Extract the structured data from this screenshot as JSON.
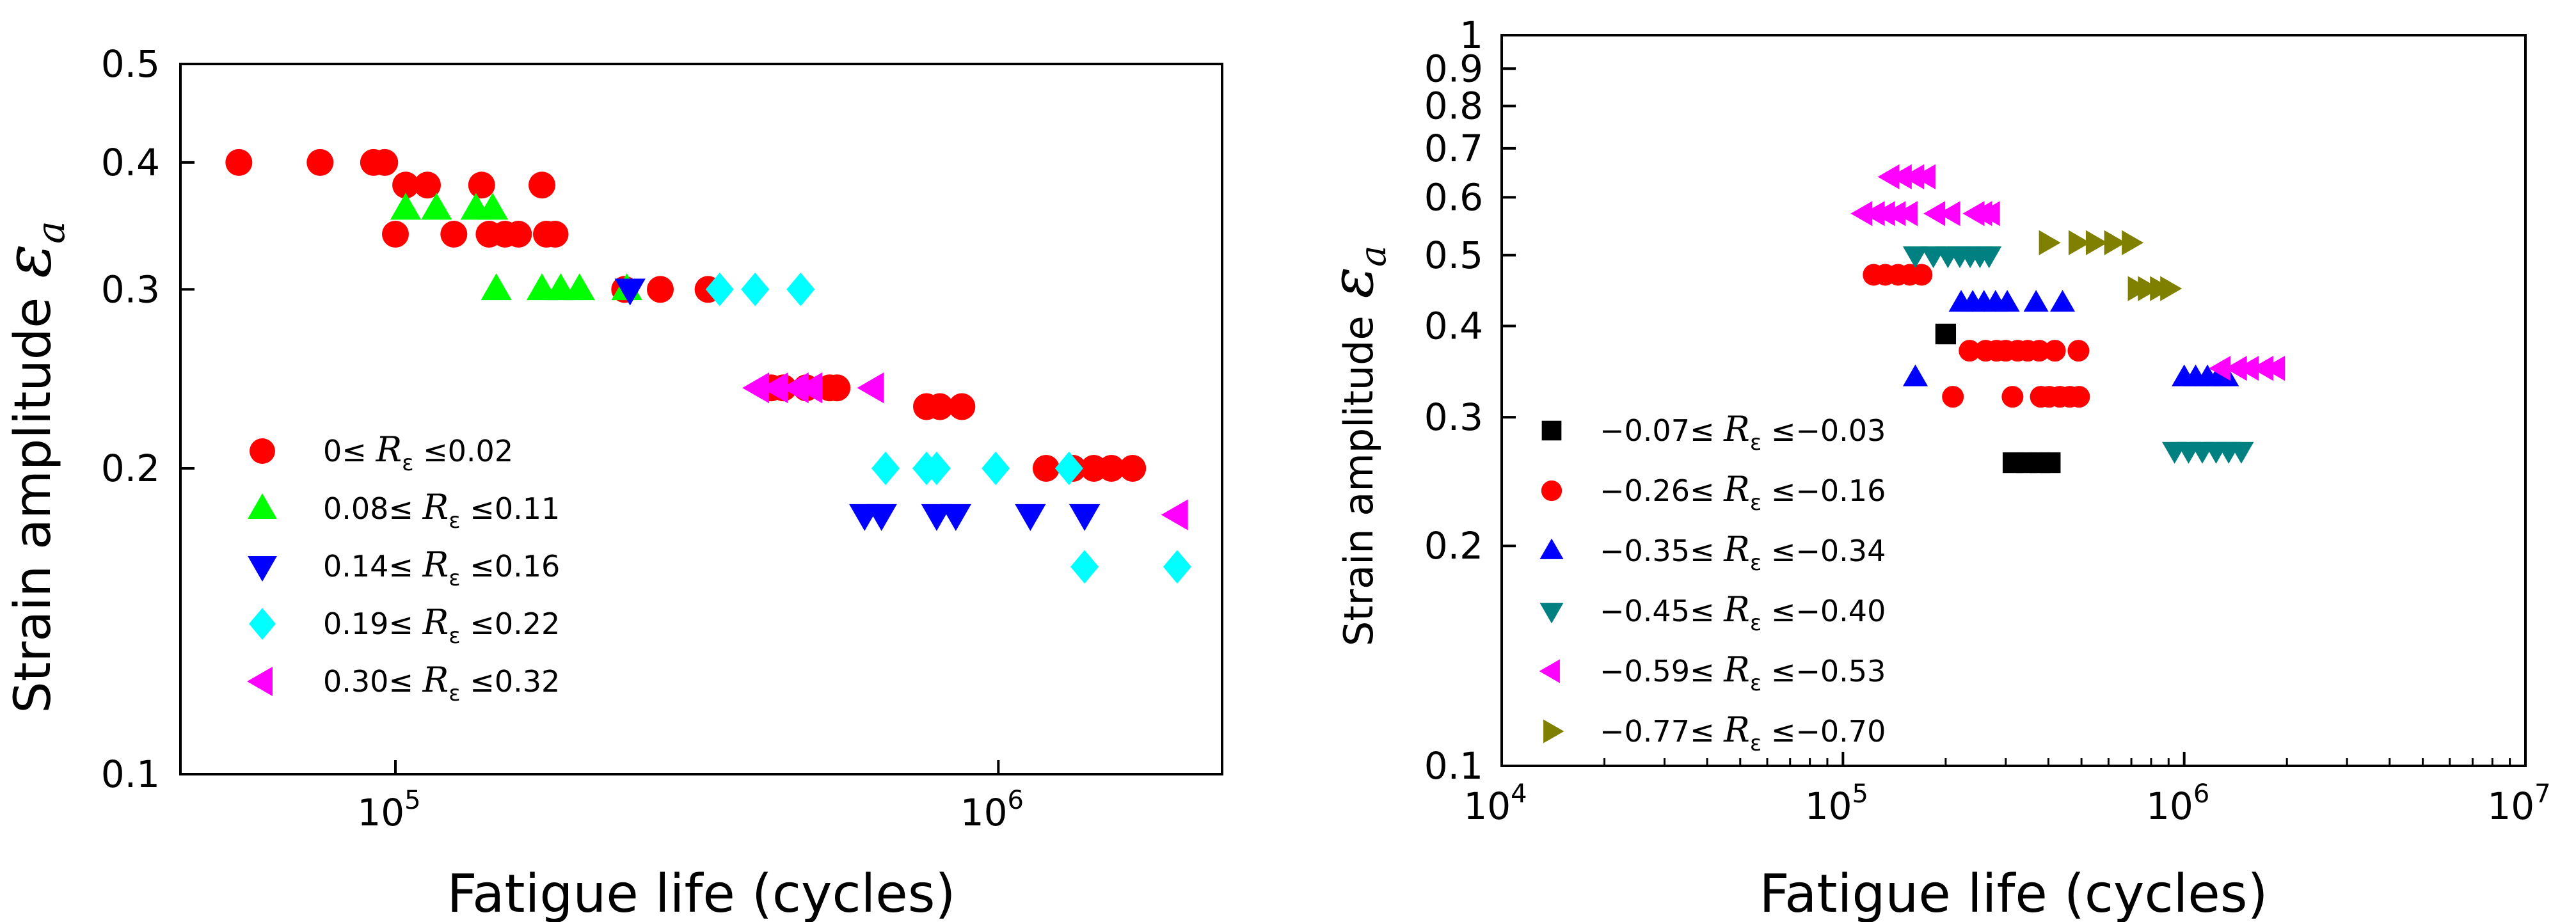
{
  "chart_data": [
    {
      "type": "scatter",
      "xscale": "log",
      "yscale": "log",
      "xlim": [
        44000,
        2350000
      ],
      "ylim": [
        0.1,
        0.5
      ],
      "xlabel": "Fatigue life (cycles)",
      "ylabel": "Strain amplitude",
      "ylabel_symbol": "ε",
      "ylabel_subscript": "a",
      "xticks": [
        {
          "v": 100000,
          "base": "10",
          "exp": "5"
        },
        {
          "v": 1000000,
          "base": "10",
          "exp": "6"
        }
      ],
      "yticks": [
        {
          "v": 0.1,
          "label": "0.1"
        },
        {
          "v": 0.2,
          "label": "0.2"
        },
        {
          "v": 0.3,
          "label": "0.3"
        },
        {
          "v": 0.4,
          "label": "0.4"
        },
        {
          "v": 0.5,
          "label": "0.5"
        }
      ],
      "legend_position": "lower-left",
      "series": [
        {
          "name": "0≤ Rε ≤0.02",
          "legend_pre": "0≤ ",
          "legend_post": " ≤0.02",
          "marker": "circle",
          "color": "#ff0000",
          "points": [
            [
              55000,
              0.4
            ],
            [
              75000,
              0.4
            ],
            [
              92000,
              0.4
            ],
            [
              96000,
              0.4
            ],
            [
              100000,
              0.34
            ],
            [
              104000,
              0.38
            ],
            [
              113000,
              0.38
            ],
            [
              125000,
              0.34
            ],
            [
              139000,
              0.38
            ],
            [
              143000,
              0.34
            ],
            [
              152000,
              0.34
            ],
            [
              160000,
              0.34
            ],
            [
              175000,
              0.38
            ],
            [
              178000,
              0.34
            ],
            [
              184000,
              0.34
            ],
            [
              240000,
              0.3
            ],
            [
              275000,
              0.3
            ],
            [
              330000,
              0.3
            ],
            [
              420000,
              0.24
            ],
            [
              440000,
              0.24
            ],
            [
              480000,
              0.24
            ],
            [
              525000,
              0.24
            ],
            [
              540000,
              0.24
            ],
            [
              760000,
              0.23
            ],
            [
              800000,
              0.23
            ],
            [
              870000,
              0.23
            ],
            [
              1200000,
              0.2
            ],
            [
              1330000,
              0.2
            ],
            [
              1440000,
              0.2
            ],
            [
              1540000,
              0.2
            ],
            [
              1670000,
              0.2
            ]
          ]
        },
        {
          "name": "0.08≤ Rε ≤0.11",
          "legend_pre": "0.08≤ ",
          "legend_post": " ≤0.11",
          "marker": "triangle-up",
          "color": "#00ff00",
          "points": [
            [
              104000,
              0.36
            ],
            [
              117000,
              0.36
            ],
            [
              136000,
              0.36
            ],
            [
              145000,
              0.36
            ],
            [
              147000,
              0.3
            ],
            [
              175000,
              0.3
            ],
            [
              188000,
              0.3
            ],
            [
              202000,
              0.3
            ],
            [
              242000,
              0.3
            ]
          ]
        },
        {
          "name": "0.14≤ Rε ≤0.16",
          "legend_pre": "0.14≤ ",
          "legend_post": " ≤0.16",
          "marker": "triangle-down",
          "color": "#0000ff",
          "points": [
            [
              245000,
              0.3
            ],
            [
              600000,
              0.18
            ],
            [
              640000,
              0.18
            ],
            [
              790000,
              0.18
            ],
            [
              850000,
              0.18
            ],
            [
              1130000,
              0.18
            ],
            [
              1390000,
              0.18
            ]
          ]
        },
        {
          "name": "0.19≤ Rε ≤0.22",
          "legend_pre": "0.19≤ ",
          "legend_post": " ≤0.22",
          "marker": "diamond",
          "color": "#00ffff",
          "points": [
            [
              345000,
              0.3
            ],
            [
              395000,
              0.3
            ],
            [
              470000,
              0.3
            ],
            [
              650000,
              0.2
            ],
            [
              760000,
              0.2
            ],
            [
              790000,
              0.2
            ],
            [
              990000,
              0.2
            ],
            [
              1310000,
              0.2
            ],
            [
              1390000,
              0.16
            ],
            [
              1980000,
              0.16
            ]
          ]
        },
        {
          "name": "0.30≤ Rε ≤0.32",
          "legend_pre": "0.30≤ ",
          "legend_post": " ≤0.32",
          "marker": "triangle-left",
          "color": "#ff00ff",
          "points": [
            [
              400000,
              0.24
            ],
            [
              430000,
              0.24
            ],
            [
              465000,
              0.24
            ],
            [
              490000,
              0.24
            ],
            [
              620000,
              0.24
            ],
            [
              1980000,
              0.18
            ]
          ]
        }
      ]
    },
    {
      "type": "scatter",
      "xscale": "log",
      "yscale": "log",
      "xlim": [
        10000,
        10000000
      ],
      "ylim": [
        0.1,
        1
      ],
      "xlabel": "Fatigue life (cycles)",
      "ylabel": "Strain amplitude",
      "ylabel_symbol": "ε",
      "ylabel_subscript": "a",
      "xticks": [
        {
          "v": 10000,
          "base": "10",
          "exp": "4"
        },
        {
          "v": 100000,
          "base": "10",
          "exp": "5"
        },
        {
          "v": 1000000,
          "base": "10",
          "exp": "6"
        },
        {
          "v": 10000000,
          "base": "10",
          "exp": "7"
        }
      ],
      "yticks": [
        {
          "v": 0.1,
          "label": "0.1"
        },
        {
          "v": 0.2,
          "label": "0.2"
        },
        {
          "v": 0.3,
          "label": "0.3"
        },
        {
          "v": 0.4,
          "label": "0.4"
        },
        {
          "v": 0.5,
          "label": "0.5"
        },
        {
          "v": 0.6,
          "label": "0.6"
        },
        {
          "v": 0.7,
          "label": "0.7"
        },
        {
          "v": 0.8,
          "label": "0.8"
        },
        {
          "v": 0.9,
          "label": "0.9"
        },
        {
          "v": 1,
          "label": "1"
        }
      ],
      "legend_position": "lower-left",
      "series": [
        {
          "name": "−0.07≤ Rε ≤−0.03",
          "legend_pre": "−0.07≤ ",
          "legend_post": " ≤−0.03",
          "marker": "square",
          "color": "#000000",
          "points": [
            [
              200000,
              0.39
            ],
            [
              315000,
              0.26
            ],
            [
              345000,
              0.26
            ],
            [
              378000,
              0.26
            ],
            [
              405000,
              0.26
            ]
          ]
        },
        {
          "name": "−0.26≤ Rε ≤−0.16",
          "legend_pre": "−0.26≤ ",
          "legend_post": " ≤−0.16",
          "marker": "circle",
          "color": "#ff0000",
          "points": [
            [
              123000,
              0.47
            ],
            [
              133000,
              0.47
            ],
            [
              145000,
              0.47
            ],
            [
              157000,
              0.47
            ],
            [
              170000,
              0.47
            ],
            [
              210000,
              0.32
            ],
            [
              235000,
              0.37
            ],
            [
              262000,
              0.37
            ],
            [
              282000,
              0.37
            ],
            [
              300000,
              0.37
            ],
            [
              314000,
              0.32
            ],
            [
              325000,
              0.37
            ],
            [
              348000,
              0.37
            ],
            [
              376000,
              0.37
            ],
            [
              380000,
              0.32
            ],
            [
              402000,
              0.32
            ],
            [
              418000,
              0.37
            ],
            [
              432000,
              0.32
            ],
            [
              462000,
              0.32
            ],
            [
              490000,
              0.37
            ],
            [
              492000,
              0.32
            ]
          ]
        },
        {
          "name": "−0.35≤ Rε ≤−0.34",
          "legend_pre": "−0.35≤ ",
          "legend_post": " ≤−0.34",
          "marker": "triangle-up",
          "color": "#0000ff",
          "points": [
            [
              163000,
              0.34
            ],
            [
              222000,
              0.43
            ],
            [
              240000,
              0.43
            ],
            [
              259000,
              0.43
            ],
            [
              280000,
              0.43
            ],
            [
              303000,
              0.43
            ],
            [
              368000,
              0.43
            ],
            [
              440000,
              0.43
            ],
            [
              1000000,
              0.34
            ],
            [
              1080000,
              0.34
            ],
            [
              1170000,
              0.34
            ],
            [
              1260000,
              0.34
            ],
            [
              1330000,
              0.34
            ]
          ]
        },
        {
          "name": "−0.45≤ Rε ≤−0.40",
          "legend_pre": "−0.45≤ ",
          "legend_post": " ≤−0.40",
          "marker": "triangle-down",
          "color": "#008080",
          "points": [
            [
              163000,
              0.5
            ],
            [
              184000,
              0.5
            ],
            [
              203000,
              0.5
            ],
            [
              220000,
              0.5
            ],
            [
              236000,
              0.5
            ],
            [
              252000,
              0.5
            ],
            [
              268000,
              0.5
            ],
            [
              937000,
              0.27
            ],
            [
              1030000,
              0.27
            ],
            [
              1130000,
              0.27
            ],
            [
              1240000,
              0.27
            ],
            [
              1350000,
              0.27
            ],
            [
              1470000,
              0.27
            ]
          ]
        },
        {
          "name": "−0.59≤ Rε ≤−0.53",
          "legend_pre": "−0.59≤ ",
          "legend_post": " ≤−0.53",
          "marker": "triangle-left",
          "color": "#ff00ff",
          "points": [
            [
              138000,
              0.64
            ],
            [
              150000,
              0.64
            ],
            [
              163000,
              0.64
            ],
            [
              176000,
              0.64
            ],
            [
              115000,
              0.57
            ],
            [
              125000,
              0.57
            ],
            [
              134000,
              0.57
            ],
            [
              144000,
              0.57
            ],
            [
              156000,
              0.57
            ],
            [
              188000,
              0.57
            ],
            [
              208000,
              0.57
            ],
            [
              245000,
              0.57
            ],
            [
              258000,
              0.57
            ],
            [
              272000,
              0.57
            ],
            [
              1290000,
              0.35
            ],
            [
              1440000,
              0.35
            ],
            [
              1560000,
              0.35
            ],
            [
              1720000,
              0.35
            ],
            [
              1860000,
              0.35
            ]
          ]
        },
        {
          "name": "−0.77≤ Rε ≤−0.70",
          "legend_pre": "−0.77≤ ",
          "legend_post": " ≤−0.70",
          "marker": "triangle-right",
          "color": "#808000",
          "points": [
            [
              398000,
              0.52
            ],
            [
              486000,
              0.52
            ],
            [
              546000,
              0.52
            ],
            [
              618000,
              0.52
            ],
            [
              696000,
              0.52
            ],
            [
              725000,
              0.45
            ],
            [
              776000,
              0.45
            ],
            [
              842000,
              0.45
            ],
            [
              902000,
              0.45
            ]
          ]
        }
      ]
    }
  ]
}
